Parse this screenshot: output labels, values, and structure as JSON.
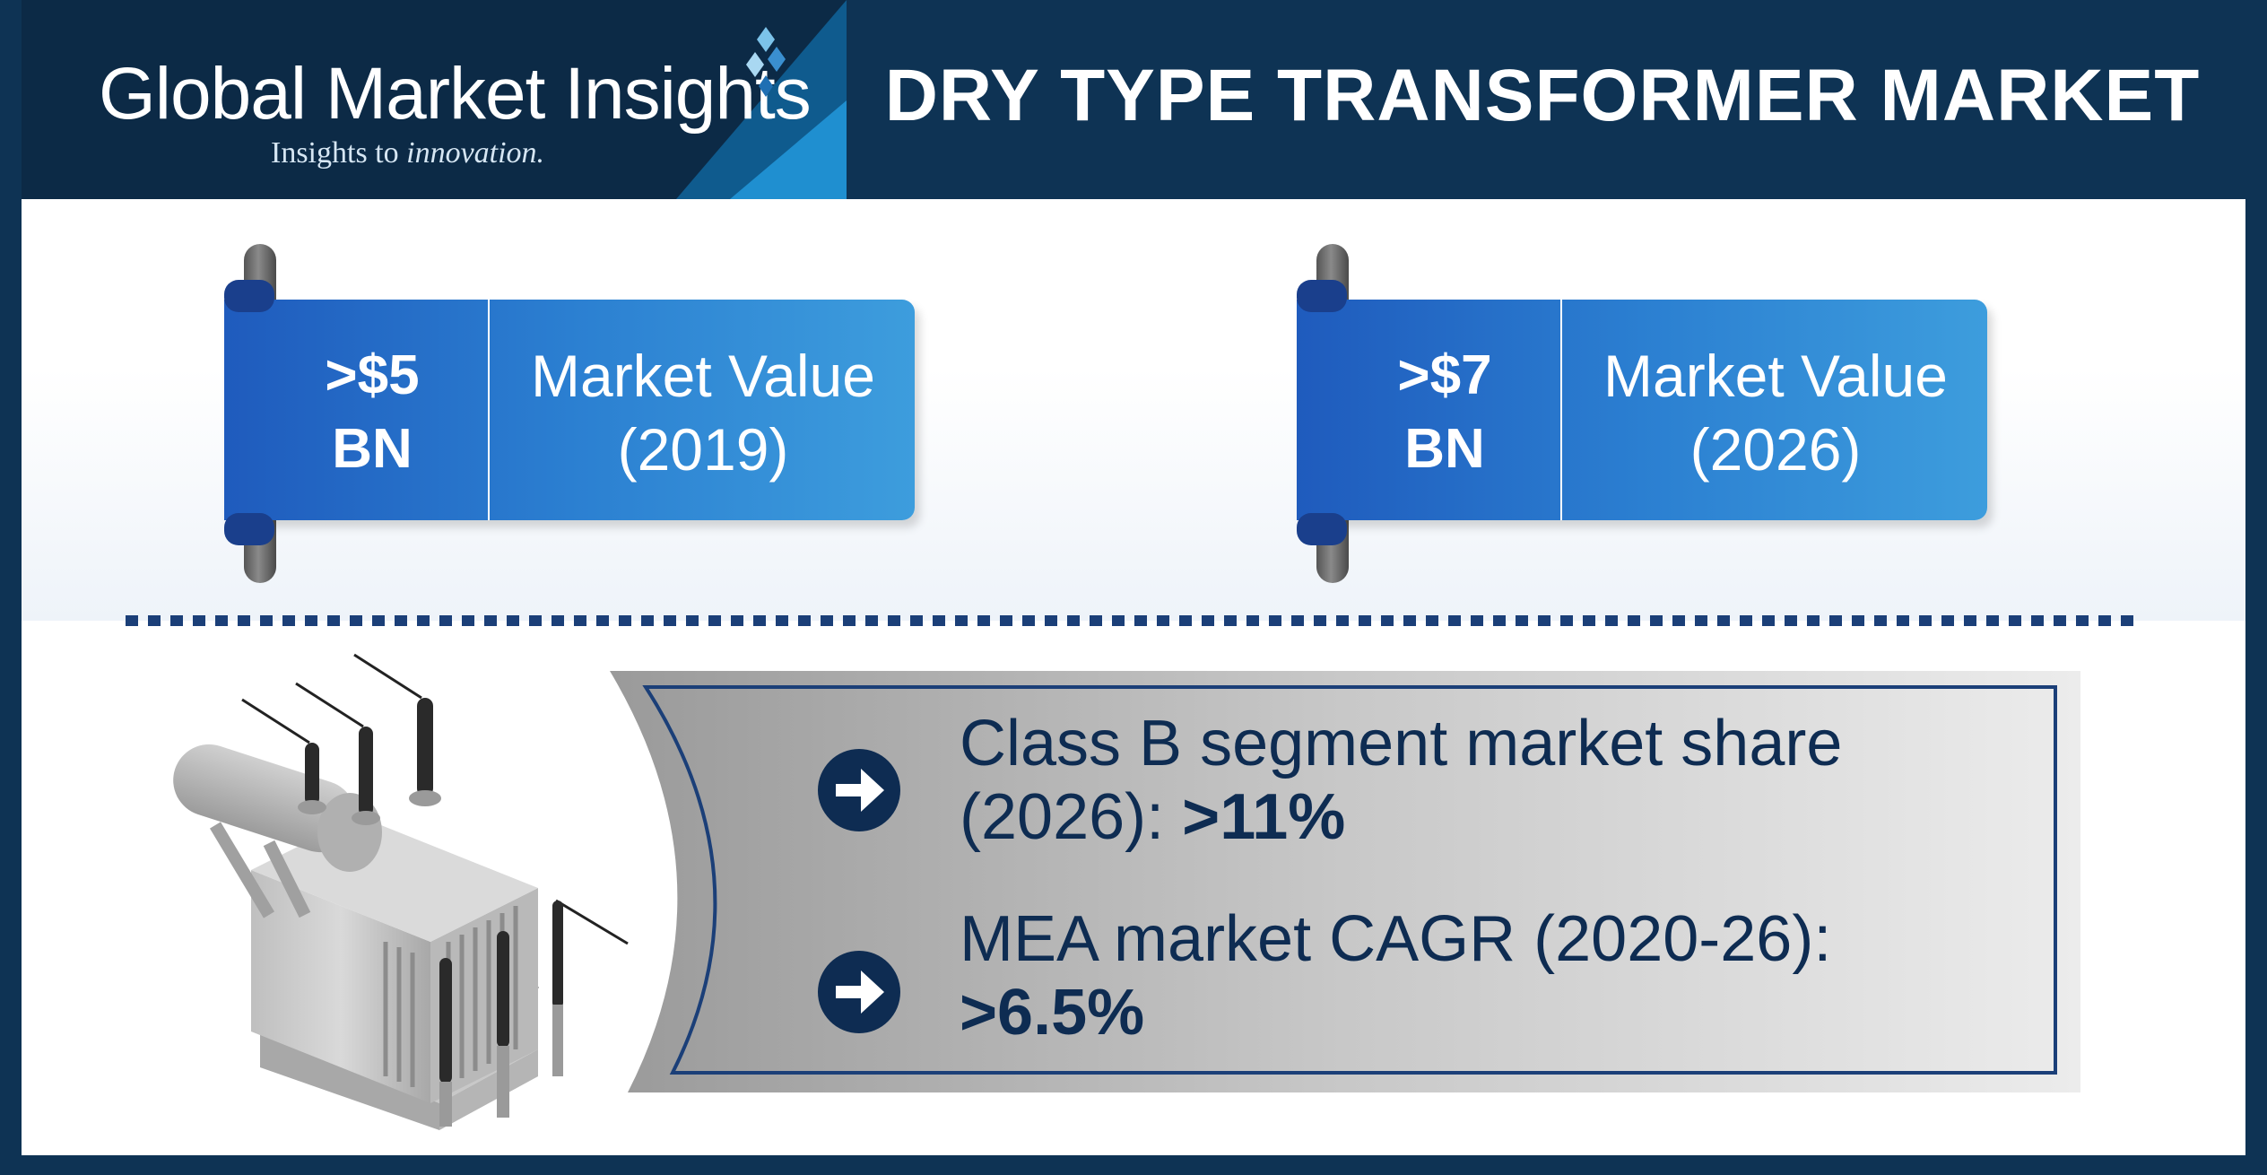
{
  "brand": {
    "name": "Global Market Insights",
    "tagline_prefix": "Insights to ",
    "tagline_emphasis": "innovation."
  },
  "title": "DRY TYPE TRANSFORMER MARKET",
  "cards": [
    {
      "value_line1": ">$5",
      "value_line2": "BN",
      "label_line1": "Market Value",
      "label_line2": "(2019)"
    },
    {
      "value_line1": ">$7",
      "value_line2": "BN",
      "label_line1": "Market Value",
      "label_line2": "(2026)"
    }
  ],
  "stats": [
    {
      "line1": "Class B segment market share",
      "line2_text": "(2026): ",
      "line2_value": ">11%"
    },
    {
      "line1": "MEA market CAGR (2020-26):",
      "line2_text": "",
      "line2_value": ">6.5%"
    }
  ],
  "colors": {
    "navy": "#0e3354",
    "card_blue": "#2b7fd1",
    "arrow_navy": "#0e2c52"
  },
  "icons": [
    "logo-diamond-icon",
    "scroll-rod-icon",
    "arrow-right-circle-icon",
    "transformer-illustration"
  ]
}
